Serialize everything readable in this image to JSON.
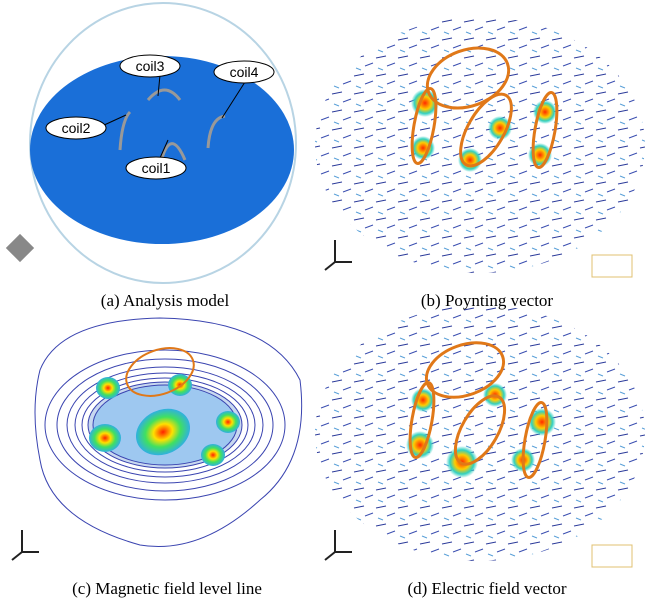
{
  "panels": [
    {
      "caption": "(a) Analysis model",
      "labels": [
        "coil3",
        "coil4",
        "coil2",
        "coil1"
      ]
    },
    {
      "caption": "(b) Poynting vector"
    },
    {
      "caption": "(c) Magnetic field level line"
    },
    {
      "caption": "(d) Electric field vector"
    }
  ]
}
